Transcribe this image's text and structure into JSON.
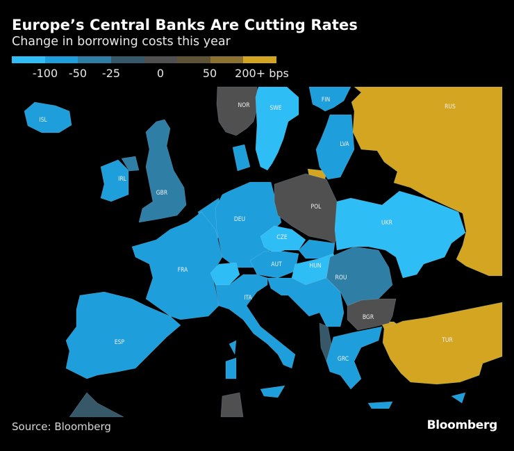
{
  "header": {
    "title": "Europe’s Central Banks Are Cutting Rates",
    "subtitle": "Change in borrowing costs this year"
  },
  "legend": {
    "colors": [
      "#2fbdf5",
      "#1e9fdc",
      "#2f7ea5",
      "#365868",
      "#505050",
      "#5f5337",
      "#8c7430",
      "#d4a521"
    ],
    "labels": [
      "-100",
      "-50",
      "-25",
      "0",
      "50",
      "200+ bps"
    ]
  },
  "map": {
    "no_data_color": "#000000",
    "regions": [
      {
        "code": "RUS",
        "label": "RUS",
        "bin": 7
      },
      {
        "code": "TUR",
        "label": "TUR",
        "bin": 7
      },
      {
        "code": "ISL",
        "label": "ISL",
        "bin": 1
      },
      {
        "code": "NOR",
        "label": "NOR",
        "bin": 4
      },
      {
        "code": "SWE",
        "label": "SWE",
        "bin": 0
      },
      {
        "code": "FIN",
        "label": "FIN",
        "bin": 1
      },
      {
        "code": "LVA",
        "label": "LVA",
        "bin": 1
      },
      {
        "code": "IRL",
        "label": "IRL",
        "bin": 1
      },
      {
        "code": "GBR",
        "label": "GBR",
        "bin": 2
      },
      {
        "code": "POL",
        "label": "POL",
        "bin": 4
      },
      {
        "code": "DEU",
        "label": "DEU",
        "bin": 1
      },
      {
        "code": "UKR",
        "label": "UKR",
        "bin": 0
      },
      {
        "code": "CZE",
        "label": "CZE",
        "bin": 0
      },
      {
        "code": "AUT",
        "label": "AUT",
        "bin": 1
      },
      {
        "code": "HUN",
        "label": "HUN",
        "bin": 0
      },
      {
        "code": "FRA",
        "label": "FRA",
        "bin": 1
      },
      {
        "code": "ROU",
        "label": "ROU",
        "bin": 2
      },
      {
        "code": "ITA",
        "label": "ITA",
        "bin": 1
      },
      {
        "code": "BGR",
        "label": "BGR",
        "bin": 4
      },
      {
        "code": "ESP",
        "label": "ESP",
        "bin": 1
      },
      {
        "code": "GRC",
        "label": "GRC",
        "bin": 1
      }
    ]
  },
  "footer": {
    "source": "Source: Bloomberg",
    "logo": "Bloomberg"
  }
}
